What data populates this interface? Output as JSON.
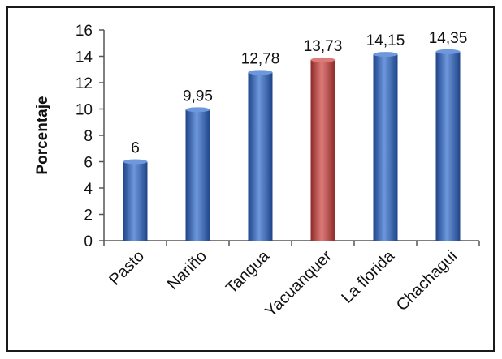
{
  "chart_data": {
    "type": "bar",
    "title": "",
    "xlabel": "",
    "ylabel": "Porcentaje",
    "ylim": [
      0,
      16
    ],
    "yticks": [
      0,
      2,
      4,
      6,
      8,
      10,
      12,
      14,
      16
    ],
    "categories": [
      "Pasto",
      "Nariño",
      "Tangua",
      "Yacuanquer",
      "La florida",
      "Chachagui"
    ],
    "values": [
      6,
      9.95,
      12.78,
      13.73,
      14.15,
      14.35
    ],
    "value_labels": [
      "6",
      "9,95",
      "12,78",
      "13,73",
      "14,15",
      "14,35"
    ],
    "highlight_category": "Yacuanquer",
    "colors": {
      "bar": "#3f6fc0",
      "bar_dark": "#1f4488",
      "bar_light": "#6e98dc",
      "highlight": "#c2504d",
      "highlight_dark": "#8c2c2a",
      "highlight_light": "#dd7b78",
      "axis": "#555555"
    },
    "grid": false,
    "legend": "none"
  }
}
